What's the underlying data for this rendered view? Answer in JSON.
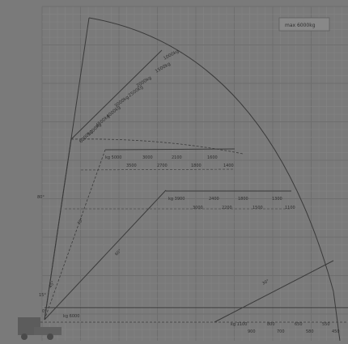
{
  "legend": {
    "text": "max 6000kg"
  },
  "colors": {
    "background": "#7a7a7a",
    "grid_minor": "#858585",
    "grid_major": "#6e6e6e",
    "line": "#3a3a3a",
    "legend_box": "#888888"
  },
  "boom_labels": [
    {
      "id": "b1",
      "text": "1000kg"
    },
    {
      "id": "b2",
      "text": "1500kg"
    },
    {
      "id": "b3",
      "text": "2000kg"
    },
    {
      "id": "b4",
      "text": "2500kg"
    },
    {
      "id": "b5",
      "text": "3000kg"
    },
    {
      "id": "b6",
      "text": "4000kg"
    },
    {
      "id": "b7",
      "text": "4500kg"
    },
    {
      "id": "b8",
      "text": "5000kg"
    },
    {
      "id": "b9",
      "text": "6000kg"
    }
  ],
  "band1": {
    "row1": [
      "kg 5000",
      "3000",
      "2100",
      "1600"
    ],
    "row2": [
      "3500",
      "2700",
      "1800",
      "1400"
    ]
  },
  "band2": {
    "row1": [
      "kg 3900",
      "2400",
      "1800",
      "1300"
    ],
    "row2": [
      "3000",
      "2200",
      "1500",
      "1100"
    ]
  },
  "band3": {
    "row1": [
      "kg 1100",
      "800",
      "650",
      "550"
    ],
    "row2": [
      "900",
      "700",
      "580",
      "450"
    ]
  },
  "angle_labels": [
    "80°",
    "70°",
    "60°",
    "45°",
    "30°",
    "15°",
    "0°"
  ],
  "bottom_labels": {
    "origin": "kg 6000",
    "axis": "0m"
  }
}
